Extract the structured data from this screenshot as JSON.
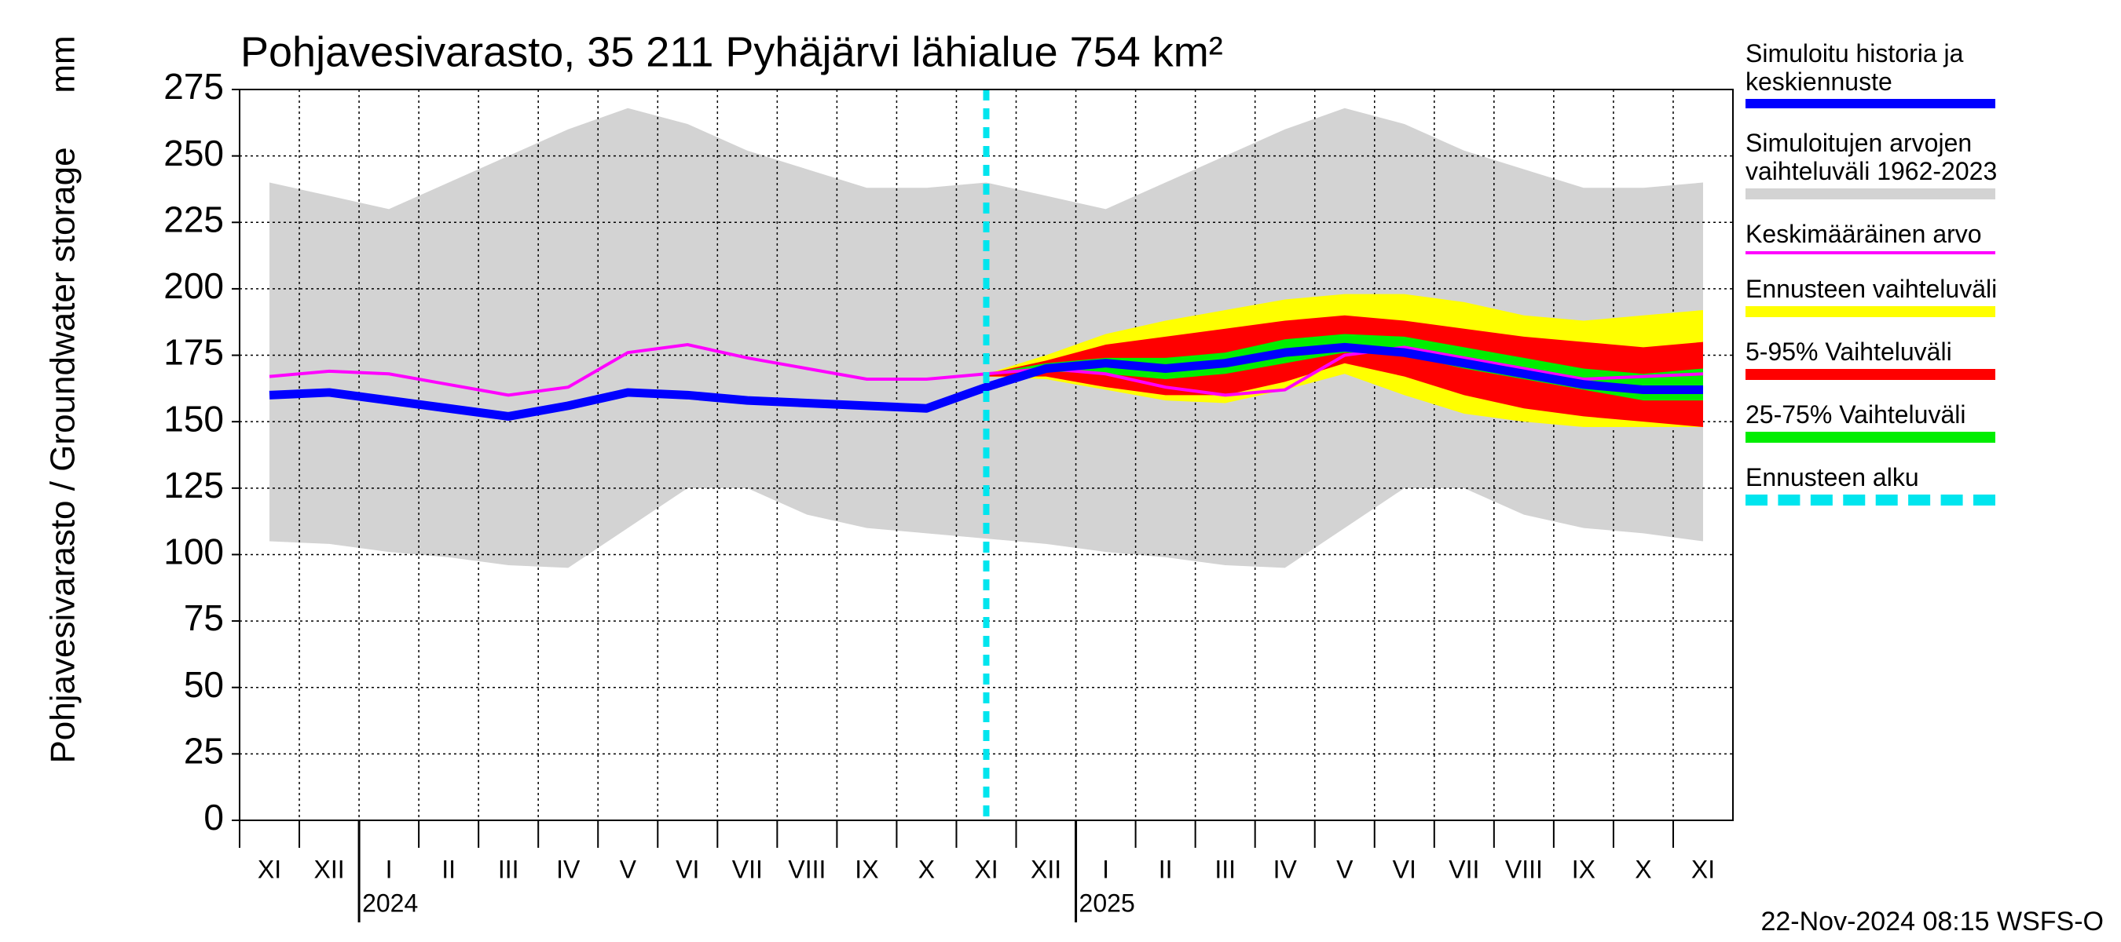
{
  "chart_data": {
    "type": "band-line",
    "title": "Pohjavesivarasto, 35 211 Pyhäjärvi lähialue 754 km²",
    "ylabel": "Pohjavesivarasto / Groundwater storage",
    "yunit": "mm",
    "footer": "22-Nov-2024 08:15 WSFS-O",
    "categories": [
      "XI",
      "XII",
      "I",
      "II",
      "III",
      "IV",
      "V",
      "VI",
      "VII",
      "VIII",
      "IX",
      "X",
      "XI",
      "XII",
      "I",
      "II",
      "III",
      "IV",
      "V",
      "VI",
      "VII",
      "VIII",
      "IX",
      "X",
      "XI"
    ],
    "years": [
      "2024",
      "2025"
    ],
    "ylim": [
      0,
      275
    ],
    "yticks": [
      0,
      25,
      50,
      75,
      100,
      125,
      150,
      175,
      200,
      225,
      250,
      275
    ],
    "grid": true,
    "series": [
      {
        "name": "Simuloitu historia ja keskiennuste",
        "color": "#0000ff",
        "style": "line",
        "values": [
          160,
          161,
          158,
          155,
          152,
          156,
          161,
          160,
          158,
          157,
          156,
          155,
          163,
          170,
          172,
          170,
          172,
          176,
          178,
          176,
          172,
          168,
          164,
          162,
          162
        ]
      },
      {
        "name": "Simuloitujen arvojen vaihteluväli 1962-2023",
        "color": "#d3d3d3",
        "style": "band",
        "high": [
          240,
          235,
          230,
          240,
          250,
          260,
          268,
          262,
          252,
          245,
          238,
          238,
          240,
          235,
          230,
          240,
          250,
          260,
          268,
          262,
          252,
          245,
          238,
          238,
          240
        ],
        "low": [
          105,
          104,
          101,
          99,
          96,
          95,
          110,
          125,
          125,
          115,
          110,
          108,
          106,
          104,
          101,
          99,
          96,
          95,
          110,
          125,
          125,
          115,
          110,
          108,
          105
        ]
      },
      {
        "name": "Keskimääräinen arvo",
        "color": "#ff00ff",
        "style": "thin-line",
        "values": [
          167,
          169,
          168,
          164,
          160,
          163,
          176,
          179,
          174,
          170,
          166,
          166,
          168,
          170,
          168,
          163,
          160,
          162,
          175,
          178,
          174,
          170,
          166,
          167,
          168
        ]
      },
      {
        "name": "Ennusteen vaihteluväli",
        "color": "#ffff00",
        "style": "band",
        "high": [
          null,
          null,
          null,
          null,
          null,
          null,
          null,
          null,
          null,
          null,
          null,
          null,
          168,
          175,
          183,
          188,
          192,
          196,
          198,
          198,
          195,
          190,
          188,
          190,
          192
        ],
        "low": [
          null,
          null,
          null,
          null,
          null,
          null,
          null,
          null,
          null,
          null,
          null,
          null,
          167,
          166,
          162,
          158,
          157,
          162,
          168,
          160,
          153,
          150,
          148,
          148,
          148
        ]
      },
      {
        "name": "5-95% Vaihteluväli",
        "color": "#ff0000",
        "style": "band",
        "high": [
          null,
          null,
          null,
          null,
          null,
          null,
          null,
          null,
          null,
          null,
          null,
          null,
          168,
          173,
          179,
          182,
          185,
          188,
          190,
          188,
          185,
          182,
          180,
          178,
          180
        ],
        "low": [
          null,
          null,
          null,
          null,
          null,
          null,
          null,
          null,
          null,
          null,
          null,
          null,
          167,
          167,
          163,
          160,
          160,
          165,
          172,
          167,
          160,
          155,
          152,
          150,
          148
        ]
      },
      {
        "name": "25-75% Vaihteluväli",
        "color": "#00ee00",
        "style": "band",
        "high": [
          null,
          null,
          null,
          null,
          null,
          null,
          null,
          null,
          null,
          null,
          null,
          null,
          168,
          172,
          174,
          174,
          176,
          181,
          183,
          182,
          178,
          174,
          170,
          168,
          170
        ],
        "low": [
          null,
          null,
          null,
          null,
          null,
          null,
          null,
          null,
          null,
          null,
          null,
          null,
          168,
          169,
          168,
          166,
          168,
          172,
          176,
          175,
          170,
          166,
          162,
          158,
          158
        ]
      },
      {
        "name": "Ennusteen alku",
        "color": "#00e5ee",
        "style": "forecast-start"
      }
    ]
  }
}
